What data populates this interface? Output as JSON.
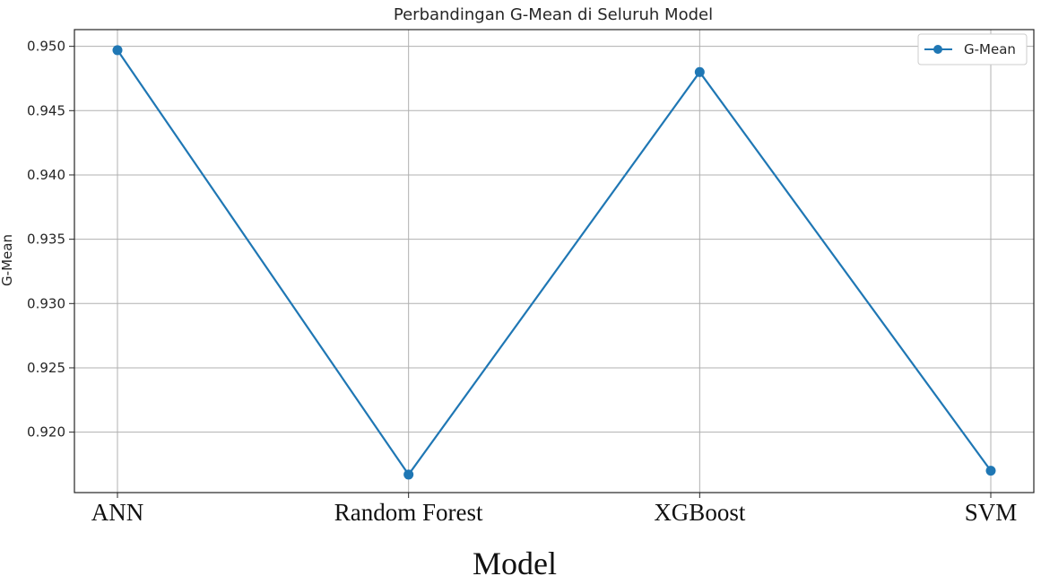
{
  "chart_data": {
    "type": "line",
    "title": "Perbandingan G-Mean di Seluruh Model",
    "xlabel": "Model",
    "ylabel": "G-Mean",
    "categories": [
      "ANN",
      "Random Forest",
      "XGBoost",
      "SVM"
    ],
    "series": [
      {
        "name": "G-Mean",
        "values": [
          0.9497,
          0.9167,
          0.948,
          0.917
        ],
        "color": "#1f77b4"
      }
    ],
    "ylim": [
      0.9153,
      0.9513
    ],
    "yticks": [
      0.92,
      0.925,
      0.93,
      0.935,
      0.94,
      0.945,
      0.95
    ],
    "ytick_labels": [
      "0.920",
      "0.925",
      "0.930",
      "0.935",
      "0.940",
      "0.945",
      "0.950"
    ],
    "grid": true,
    "legend_position": "top-right",
    "marker": "circle"
  }
}
